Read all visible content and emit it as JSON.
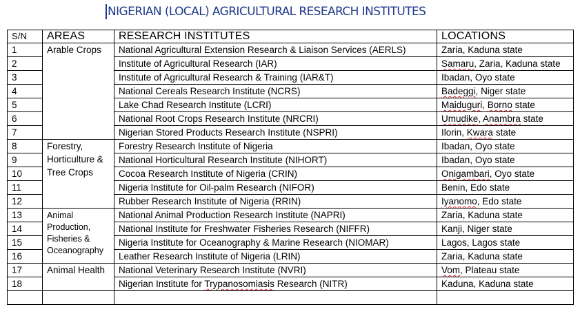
{
  "title": "NIGERIAN (LOCAL) AGRICULTURAL RESEARCH INSTITUTES",
  "headers": {
    "sn": "S/N",
    "areas": "AREAS",
    "institutes": "RESEARCH INSTITUTES",
    "locations": "LOCATIONS"
  },
  "groups": [
    {
      "area": "Arable Crops",
      "rows": [
        {
          "sn": "1",
          "institute": "National Agricultural Extension Research & Liaison Services (AERLS)",
          "location": "Zaria, Kaduna state"
        },
        {
          "sn": "2",
          "institute": "Institute of Agricultural Research (IAR)",
          "location": "Samaru, Zaria, Kaduna state"
        },
        {
          "sn": "3",
          "institute": "Institute of Agricultural Research & Training (IAR&T)",
          "location": "Ibadan, Oyo state"
        },
        {
          "sn": "4",
          "institute": "National Cereals Research Institute (NCRS)",
          "location": "Badeggi, Niger state"
        },
        {
          "sn": "5",
          "institute": "Lake Chad Research Institute (LCRI)",
          "location": "Maiduguri, Borno state"
        },
        {
          "sn": "6",
          "institute": "National Root Crops Research Institute (NRCRI)",
          "location": "Umudike, Anambra state"
        },
        {
          "sn": "7",
          "institute": "Nigerian Stored Products Research Institute (NSPRI)",
          "location": "Ilorin, Kwara state"
        }
      ]
    },
    {
      "area": "Forestry, Horticulture & Tree Crops",
      "rows": [
        {
          "sn": "8",
          "institute": "Forestry Research Institute of Nigeria",
          "location": "Ibadan, Oyo state"
        },
        {
          "sn": "9",
          "institute": "National Horticultural Research Institute (NIHORT)",
          "location": "Ibadan, Oyo state"
        },
        {
          "sn": "10",
          "institute": "Cocoa Research Institute of Nigeria (CRIN)",
          "location": "Onigambari, Oyo state"
        },
        {
          "sn": "11",
          "institute": "Nigeria Institute for Oil-palm Research (NIFOR)",
          "location": "Benin, Edo state"
        },
        {
          "sn": "12",
          "institute": "Rubber Research Institute of Nigeria (RRIN)",
          "location": "Iyanomo, Edo state"
        }
      ]
    },
    {
      "area": "Animal Production, Fisheries & Oceanography",
      "rows": [
        {
          "sn": "13",
          "institute": "National Animal Production Research Institute (NAPRI)",
          "location": "Zaria, Kaduna state"
        },
        {
          "sn": "14",
          "institute": "National Institute for Freshwater Fisheries Research (NIFFR)",
          "location": "Kanji, Niger state"
        },
        {
          "sn": "15",
          "institute": "Nigeria Institute for Oceanography & Marine Research (NIOMAR)",
          "location": "Lagos, Lagos state"
        },
        {
          "sn": "16",
          "institute": "Leather Research Institute of Nigeria (LRIN)",
          "location": "Zaria, Kaduna state"
        }
      ]
    },
    {
      "area": "Animal Health",
      "rows": [
        {
          "sn": "17",
          "institute": "National Veterinary Research Institute (NVRI)",
          "location": "Vom, Plateau state"
        },
        {
          "sn": "18",
          "institute": "Nigerian Institute for Trypanosomiasis Research (NITR)",
          "location": "Kaduna, Kaduna state"
        }
      ]
    }
  ],
  "spellcheck_color": "#dd2222",
  "title_color": "#1f3a8a"
}
